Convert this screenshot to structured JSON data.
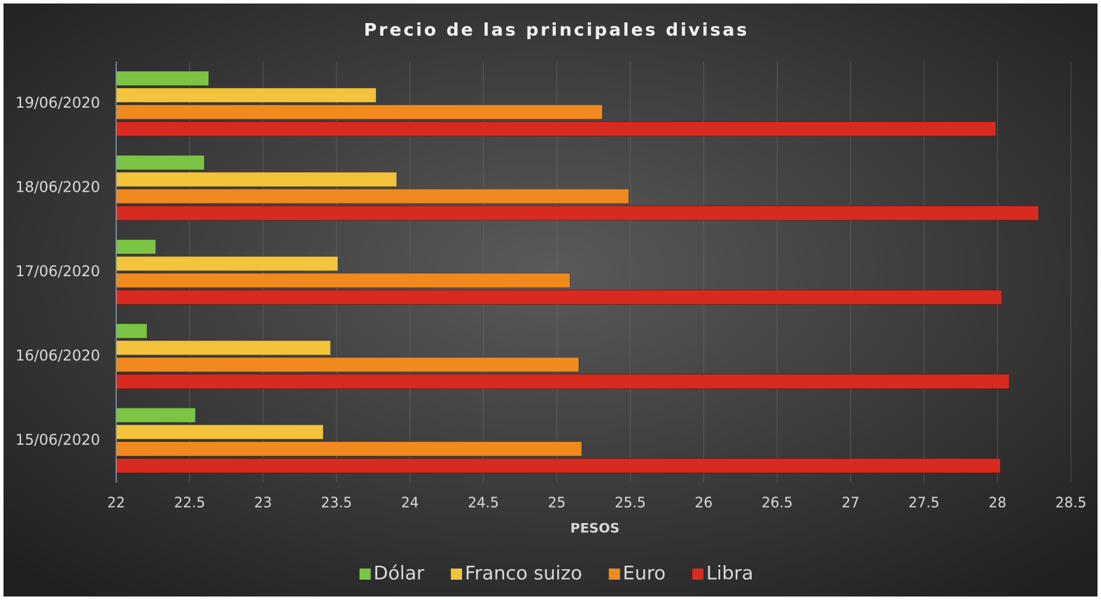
{
  "chart_data": {
    "type": "barh",
    "title": "Precio de las principales divisas",
    "xlabel": "PESOS",
    "categories": [
      "15/06/2020",
      "16/06/2020",
      "17/06/2020",
      "18/06/2020",
      "19/06/2020"
    ],
    "series": [
      {
        "name": "Dólar",
        "color": "#7cc544",
        "values": [
          22.54,
          22.21,
          22.27,
          22.6,
          22.63
        ]
      },
      {
        "name": "Franco suizo",
        "color": "#f2c33b",
        "values": [
          23.41,
          23.46,
          23.51,
          23.91,
          23.77
        ]
      },
      {
        "name": "Euro",
        "color": "#f08a1f",
        "values": [
          25.17,
          25.15,
          25.09,
          25.49,
          25.31
        ]
      },
      {
        "name": "Libra",
        "color": "#d92a1f",
        "values": [
          28.02,
          28.08,
          28.03,
          28.28,
          27.99
        ]
      }
    ],
    "xlim": [
      22,
      28.5
    ],
    "xticks": [
      22,
      22.5,
      23,
      23.5,
      24,
      24.5,
      25,
      25.5,
      26,
      26.5,
      27,
      27.5,
      28,
      28.5
    ],
    "grid": true,
    "legend": "bottom"
  }
}
